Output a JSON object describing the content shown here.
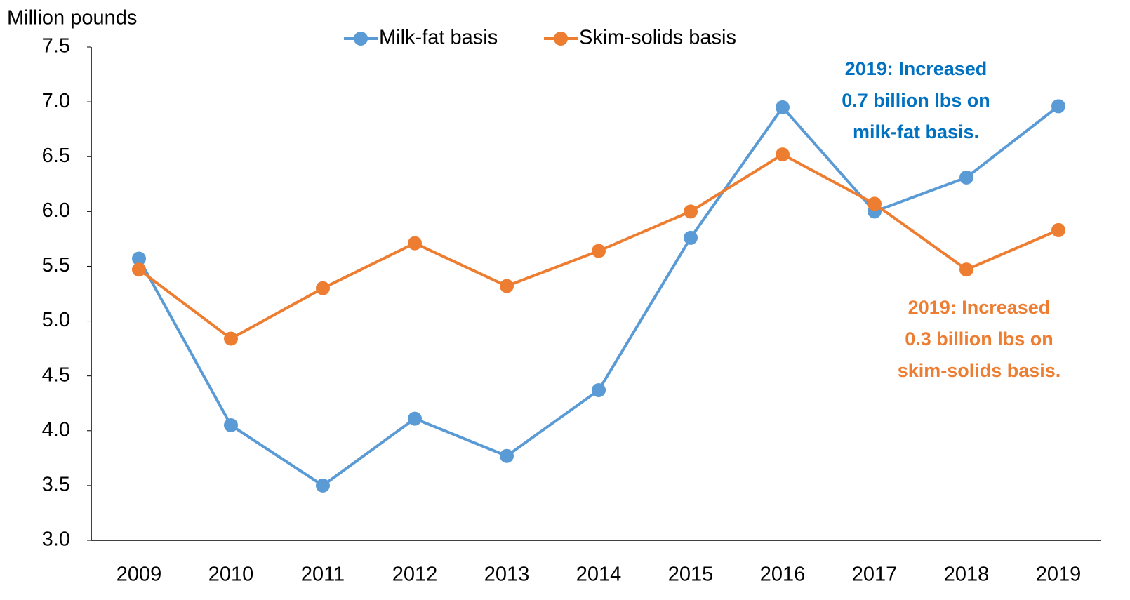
{
  "chart_data": {
    "type": "line",
    "y_axis_label": "Million pounds",
    "categories": [
      "2009",
      "2010",
      "2011",
      "2012",
      "2013",
      "2014",
      "2015",
      "2016",
      "2017",
      "2018",
      "2019"
    ],
    "series": [
      {
        "name": "Milk-fat basis",
        "color": "#5b9bd5",
        "values": [
          5.57,
          4.05,
          3.5,
          4.11,
          3.77,
          4.37,
          5.76,
          6.95,
          6.0,
          6.31,
          6.96
        ]
      },
      {
        "name": "Skim-solids basis",
        "color": "#ed7d31",
        "values": [
          5.47,
          4.84,
          5.3,
          5.71,
          5.32,
          5.64,
          6.0,
          6.52,
          6.07,
          5.47,
          5.83
        ]
      }
    ],
    "ylim": [
      3,
      7.5
    ],
    "yticks": [
      {
        "value": 3,
        "label": "3.0"
      },
      3.5,
      {
        "value": 4,
        "label": "4.0"
      },
      4.5,
      {
        "value": 5,
        "label": "5.0"
      },
      5.5,
      {
        "value": 6,
        "label": "6.0"
      },
      6.5,
      {
        "value": 7,
        "label": "7.0"
      },
      7.5
    ],
    "legend": "top",
    "annotations": [
      {
        "lines": [
          "2019: Increased",
          "0.7 billion lbs on",
          "milk-fat basis."
        ],
        "color": "#0070c0"
      },
      {
        "lines": [
          "2019: Increased",
          "0.3 billion lbs on",
          "skim-solids basis."
        ],
        "color": "#ed7d31"
      }
    ]
  }
}
